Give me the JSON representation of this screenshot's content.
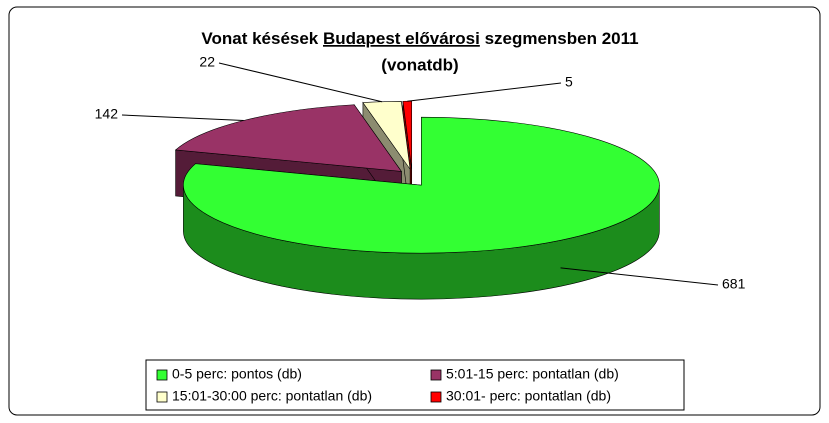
{
  "chart_data": {
    "type": "pie3d",
    "title": [
      "Vonat késések",
      "Budapest elővárosi",
      "szegmensben 2011",
      "(vonatdb)"
    ],
    "title_underlined": 1,
    "categories": [
      "0-5 perc: pontos (db)",
      "5:01-15 perc: pontatlan (db)",
      "15:01-30:00 perc: pontatlan (db)",
      "30:01- perc: pontatlan (db)"
    ],
    "values": [
      681,
      142,
      22,
      5
    ],
    "colors": [
      "#33ff33",
      "#993366",
      "#ffffcc",
      "#ff0000"
    ],
    "legend": "bottom"
  }
}
